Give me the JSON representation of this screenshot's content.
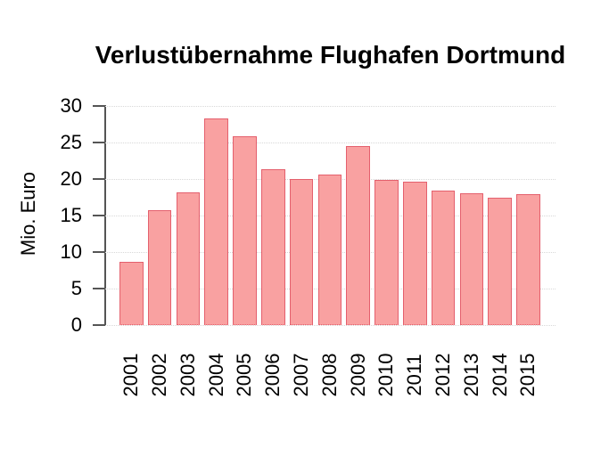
{
  "chart_data": {
    "type": "bar",
    "title": "Verlustübernahme Flughafen Dortmund",
    "ylabel": "Mio. Euro",
    "xlabel": "",
    "categories": [
      "2001",
      "2002",
      "2003",
      "2004",
      "2005",
      "2006",
      "2007",
      "2008",
      "2009",
      "2010",
      "2011",
      "2012",
      "2013",
      "2014",
      "2015"
    ],
    "values": [
      8.7,
      15.7,
      18.2,
      28.3,
      25.8,
      21.3,
      20.0,
      20.6,
      24.5,
      19.9,
      19.6,
      18.4,
      18.1,
      17.4,
      17.9
    ],
    "ylim": [
      0,
      30
    ],
    "yticks": [
      0,
      5,
      10,
      15,
      20,
      25,
      30
    ],
    "grid": "horizontal-dotted",
    "legend": "none",
    "colors": {
      "bar_fill": "#F9A1A1",
      "bar_border": "#E4606D",
      "axis_color": "#555555",
      "grid_color": "#D8D8D8",
      "text_color": "#000000",
      "background": "#FFFFFF"
    }
  }
}
